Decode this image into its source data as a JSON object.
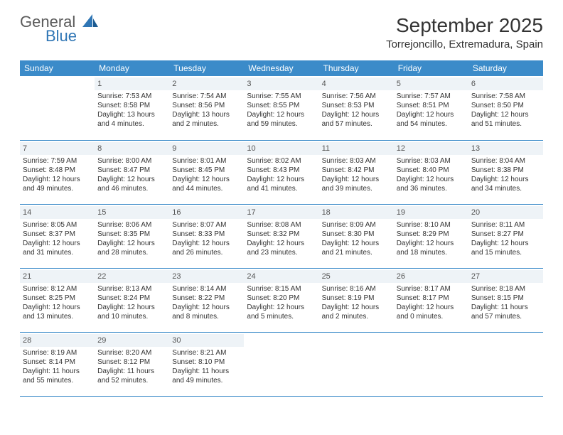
{
  "logo": {
    "word1": "General",
    "word2": "Blue"
  },
  "header": {
    "month_title": "September 2025",
    "location": "Torrejoncillo, Extremadura, Spain"
  },
  "colors": {
    "header_bg": "#3b8bc9",
    "header_text": "#ffffff",
    "daynum_bg": "#eef3f7",
    "border": "#3b8bc9",
    "text": "#333333",
    "logo_gray": "#5a5a5a",
    "logo_blue": "#2f76b5"
  },
  "day_headers": [
    "Sunday",
    "Monday",
    "Tuesday",
    "Wednesday",
    "Thursday",
    "Friday",
    "Saturday"
  ],
  "weeks": [
    [
      null,
      {
        "n": "1",
        "sunrise": "7:53 AM",
        "sunset": "8:58 PM",
        "daylight": "13 hours and 4 minutes."
      },
      {
        "n": "2",
        "sunrise": "7:54 AM",
        "sunset": "8:56 PM",
        "daylight": "13 hours and 2 minutes."
      },
      {
        "n": "3",
        "sunrise": "7:55 AM",
        "sunset": "8:55 PM",
        "daylight": "12 hours and 59 minutes."
      },
      {
        "n": "4",
        "sunrise": "7:56 AM",
        "sunset": "8:53 PM",
        "daylight": "12 hours and 57 minutes."
      },
      {
        "n": "5",
        "sunrise": "7:57 AM",
        "sunset": "8:51 PM",
        "daylight": "12 hours and 54 minutes."
      },
      {
        "n": "6",
        "sunrise": "7:58 AM",
        "sunset": "8:50 PM",
        "daylight": "12 hours and 51 minutes."
      }
    ],
    [
      {
        "n": "7",
        "sunrise": "7:59 AM",
        "sunset": "8:48 PM",
        "daylight": "12 hours and 49 minutes."
      },
      {
        "n": "8",
        "sunrise": "8:00 AM",
        "sunset": "8:47 PM",
        "daylight": "12 hours and 46 minutes."
      },
      {
        "n": "9",
        "sunrise": "8:01 AM",
        "sunset": "8:45 PM",
        "daylight": "12 hours and 44 minutes."
      },
      {
        "n": "10",
        "sunrise": "8:02 AM",
        "sunset": "8:43 PM",
        "daylight": "12 hours and 41 minutes."
      },
      {
        "n": "11",
        "sunrise": "8:03 AM",
        "sunset": "8:42 PM",
        "daylight": "12 hours and 39 minutes."
      },
      {
        "n": "12",
        "sunrise": "8:03 AM",
        "sunset": "8:40 PM",
        "daylight": "12 hours and 36 minutes."
      },
      {
        "n": "13",
        "sunrise": "8:04 AM",
        "sunset": "8:38 PM",
        "daylight": "12 hours and 34 minutes."
      }
    ],
    [
      {
        "n": "14",
        "sunrise": "8:05 AM",
        "sunset": "8:37 PM",
        "daylight": "12 hours and 31 minutes."
      },
      {
        "n": "15",
        "sunrise": "8:06 AM",
        "sunset": "8:35 PM",
        "daylight": "12 hours and 28 minutes."
      },
      {
        "n": "16",
        "sunrise": "8:07 AM",
        "sunset": "8:33 PM",
        "daylight": "12 hours and 26 minutes."
      },
      {
        "n": "17",
        "sunrise": "8:08 AM",
        "sunset": "8:32 PM",
        "daylight": "12 hours and 23 minutes."
      },
      {
        "n": "18",
        "sunrise": "8:09 AM",
        "sunset": "8:30 PM",
        "daylight": "12 hours and 21 minutes."
      },
      {
        "n": "19",
        "sunrise": "8:10 AM",
        "sunset": "8:29 PM",
        "daylight": "12 hours and 18 minutes."
      },
      {
        "n": "20",
        "sunrise": "8:11 AM",
        "sunset": "8:27 PM",
        "daylight": "12 hours and 15 minutes."
      }
    ],
    [
      {
        "n": "21",
        "sunrise": "8:12 AM",
        "sunset": "8:25 PM",
        "daylight": "12 hours and 13 minutes."
      },
      {
        "n": "22",
        "sunrise": "8:13 AM",
        "sunset": "8:24 PM",
        "daylight": "12 hours and 10 minutes."
      },
      {
        "n": "23",
        "sunrise": "8:14 AM",
        "sunset": "8:22 PM",
        "daylight": "12 hours and 8 minutes."
      },
      {
        "n": "24",
        "sunrise": "8:15 AM",
        "sunset": "8:20 PM",
        "daylight": "12 hours and 5 minutes."
      },
      {
        "n": "25",
        "sunrise": "8:16 AM",
        "sunset": "8:19 PM",
        "daylight": "12 hours and 2 minutes."
      },
      {
        "n": "26",
        "sunrise": "8:17 AM",
        "sunset": "8:17 PM",
        "daylight": "12 hours and 0 minutes."
      },
      {
        "n": "27",
        "sunrise": "8:18 AM",
        "sunset": "8:15 PM",
        "daylight": "11 hours and 57 minutes."
      }
    ],
    [
      {
        "n": "28",
        "sunrise": "8:19 AM",
        "sunset": "8:14 PM",
        "daylight": "11 hours and 55 minutes."
      },
      {
        "n": "29",
        "sunrise": "8:20 AM",
        "sunset": "8:12 PM",
        "daylight": "11 hours and 52 minutes."
      },
      {
        "n": "30",
        "sunrise": "8:21 AM",
        "sunset": "8:10 PM",
        "daylight": "11 hours and 49 minutes."
      },
      null,
      null,
      null,
      null
    ]
  ],
  "labels": {
    "sunrise": "Sunrise: ",
    "sunset": "Sunset: ",
    "daylight": "Daylight: "
  }
}
